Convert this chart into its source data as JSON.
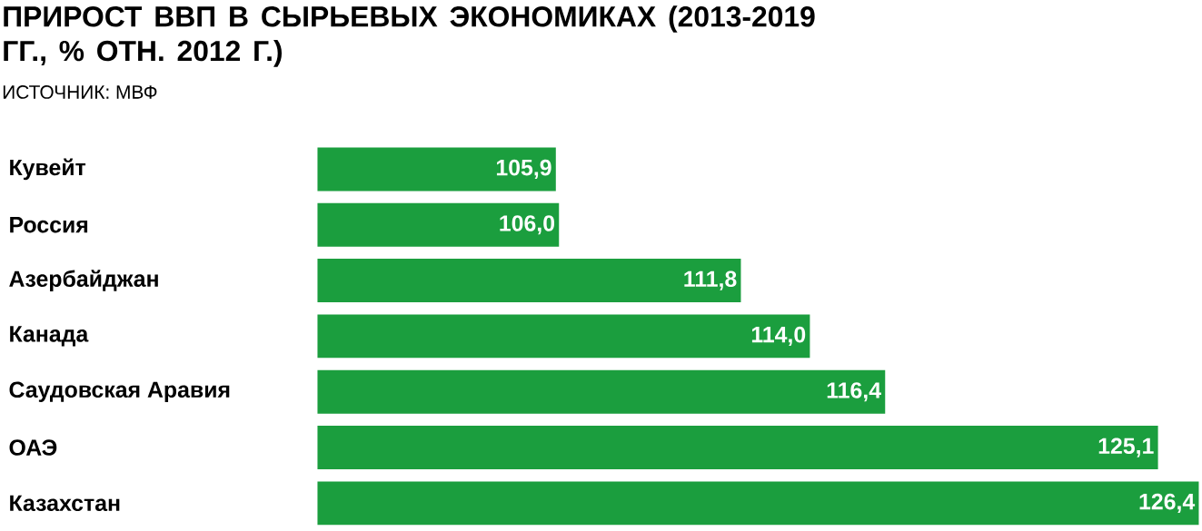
{
  "chart_data": {
    "type": "bar",
    "orientation": "horizontal",
    "title": "ПРИРОСТ ВВП В СЫРЬЕВЫХ ЭКОНОМИКАХ (2013-2019 ГГ., % ОТН. 2012 Г.)",
    "annotations": [
      "ИСТОЧНИК: МВФ"
    ],
    "categories": [
      "Кувейт",
      "Россия",
      "Азербайджан",
      "Канада",
      "Саудовская Аравия",
      "ОАЭ",
      "Казахстан"
    ],
    "values": [
      105.9,
      106.0,
      111.8,
      114.0,
      116.4,
      125.1,
      126.4
    ],
    "value_labels": [
      "105,9",
      "106,0",
      "111,8",
      "114,0",
      "116,4",
      "125,1",
      "126,4"
    ],
    "color": "#1b9e3e",
    "xlim": [
      98.3,
      126.5
    ],
    "tick_labels": "y"
  }
}
